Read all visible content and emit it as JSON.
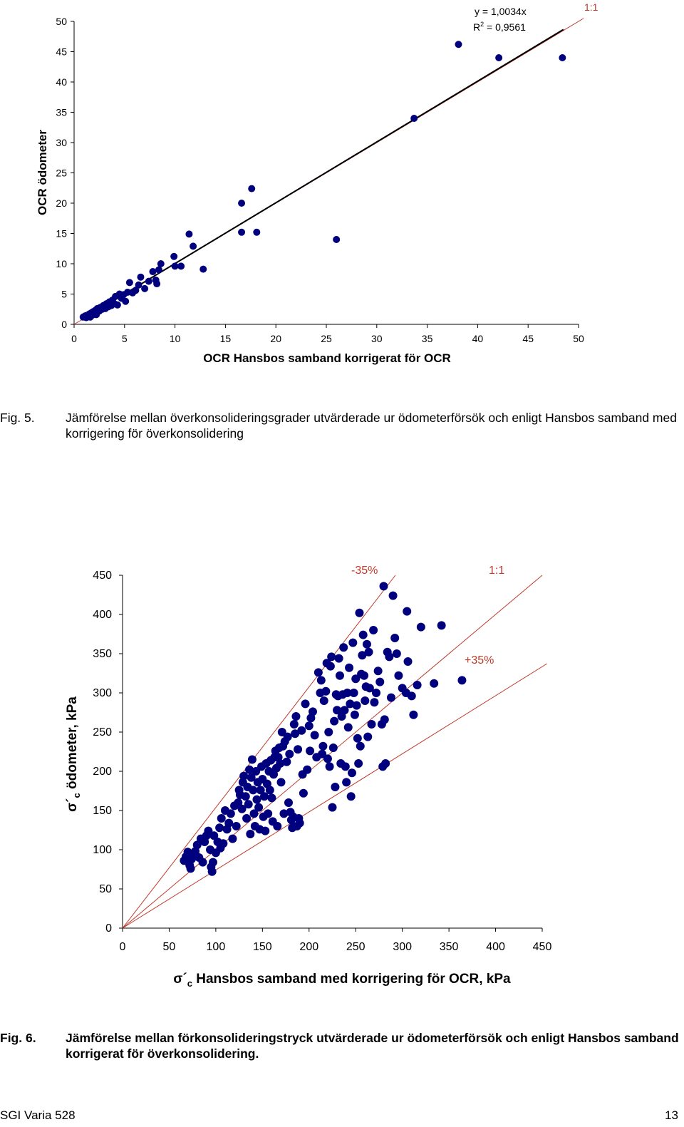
{
  "chart_data": [
    {
      "type": "scatter",
      "xlabel": "OCR Hansbos samband korrigerat för OCR",
      "ylabel": "OCR ödometer",
      "xlim": [
        0,
        50
      ],
      "ylim": [
        0,
        50
      ],
      "xticks": [
        0,
        5,
        10,
        15,
        20,
        25,
        30,
        35,
        40,
        45,
        50
      ],
      "yticks": [
        0,
        5,
        10,
        15,
        20,
        25,
        30,
        35,
        40,
        45,
        50
      ],
      "grid": false,
      "trendline": {
        "slope": 1.0034,
        "equation": "y = 1,0034x",
        "r2_prefix": "R",
        "r2_sup": "2",
        "r2_value": " = 0,9561"
      },
      "reference_lines": [
        {
          "slope": 1,
          "label": "1:1",
          "color": "#c0392b"
        }
      ],
      "point_color": "#00007f",
      "points": [
        [
          0.9,
          1.2
        ],
        [
          1.1,
          1.4
        ],
        [
          1.2,
          1.1
        ],
        [
          1.3,
          1.5
        ],
        [
          1.4,
          1.3
        ],
        [
          1.5,
          1.7
        ],
        [
          1.6,
          1.2
        ],
        [
          1.7,
          1.9
        ],
        [
          1.8,
          1.5
        ],
        [
          1.9,
          2.1
        ],
        [
          2.0,
          1.8
        ],
        [
          2.1,
          2.3
        ],
        [
          2.2,
          1.6
        ],
        [
          2.3,
          2.6
        ],
        [
          2.5,
          2.2
        ],
        [
          2.6,
          2.8
        ],
        [
          2.8,
          2.5
        ],
        [
          2.9,
          3.1
        ],
        [
          3.1,
          2.6
        ],
        [
          3.2,
          3.4
        ],
        [
          3.4,
          2.9
        ],
        [
          3.5,
          3.7
        ],
        [
          3.7,
          3.1
        ],
        [
          3.8,
          4.0
        ],
        [
          4.0,
          3.4
        ],
        [
          4.1,
          4.6
        ],
        [
          4.3,
          3.2
        ],
        [
          4.5,
          5.0
        ],
        [
          4.7,
          4.3
        ],
        [
          4.9,
          4.9
        ],
        [
          5.1,
          3.8
        ],
        [
          5.3,
          5.3
        ],
        [
          5.5,
          6.9
        ],
        [
          5.8,
          5.2
        ],
        [
          6.1,
          5.6
        ],
        [
          6.4,
          6.5
        ],
        [
          6.6,
          7.8
        ],
        [
          7.0,
          5.9
        ],
        [
          7.4,
          7.1
        ],
        [
          7.8,
          8.7
        ],
        [
          8.1,
          7.3
        ],
        [
          8.2,
          6.7
        ],
        [
          8.4,
          9.0
        ],
        [
          8.6,
          10.0
        ],
        [
          9.9,
          11.2
        ],
        [
          10.0,
          9.6
        ],
        [
          10.6,
          9.6
        ],
        [
          11.4,
          14.9
        ],
        [
          11.8,
          12.9
        ],
        [
          12.8,
          9.1
        ],
        [
          16.6,
          20.0
        ],
        [
          16.6,
          15.2
        ],
        [
          17.6,
          22.4
        ],
        [
          18.1,
          15.2
        ],
        [
          26.0,
          14.0
        ],
        [
          33.7,
          34.0
        ],
        [
          38.1,
          46.2
        ],
        [
          42.1,
          44.0
        ],
        [
          48.4,
          44.0
        ]
      ]
    },
    {
      "type": "scatter",
      "xlabel_sigma": "σ´",
      "xlabel_sub": "c",
      "xlabel": " Hansbos samband med korrigering för OCR, kPa",
      "ylabel_sigma": "σ´",
      "ylabel_sub": "c",
      "ylabel": " ödometer, kPa",
      "xlim": [
        0,
        450
      ],
      "ylim": [
        0,
        450
      ],
      "xticks": [
        0,
        50,
        100,
        150,
        200,
        250,
        300,
        350,
        400,
        450
      ],
      "yticks": [
        0,
        50,
        100,
        150,
        200,
        250,
        300,
        350,
        400,
        450
      ],
      "grid": false,
      "reference_lines": [
        {
          "slope": 1.538,
          "label": "-35%",
          "color": "#c0392b"
        },
        {
          "slope": 1.0,
          "label": "1:1",
          "color": "#c0392b"
        },
        {
          "slope": 0.741,
          "label": "+35%",
          "color": "#c0392b"
        }
      ],
      "point_color": "#00007f",
      "points": [
        [
          66,
          86
        ],
        [
          68,
          91
        ],
        [
          70,
          97
        ],
        [
          72,
          80
        ],
        [
          73,
          76
        ],
        [
          74,
          88
        ],
        [
          75,
          94
        ],
        [
          78,
          98
        ],
        [
          80,
          106
        ],
        [
          82,
          90
        ],
        [
          84,
          114
        ],
        [
          86,
          84
        ],
        [
          88,
          110
        ],
        [
          90,
          118
        ],
        [
          92,
          124
        ],
        [
          94,
          100
        ],
        [
          95,
          78
        ],
        [
          96,
          72
        ],
        [
          97,
          84
        ],
        [
          98,
          118
        ],
        [
          100,
          96
        ],
        [
          102,
          110
        ],
        [
          104,
          128
        ],
        [
          105,
          102
        ],
        [
          106,
          140
        ],
        [
          108,
          108
        ],
        [
          110,
          150
        ],
        [
          112,
          126
        ],
        [
          114,
          134
        ],
        [
          116,
          146
        ],
        [
          118,
          114
        ],
        [
          120,
          156
        ],
        [
          122,
          130
        ],
        [
          124,
          160
        ],
        [
          125,
          176
        ],
        [
          126,
          170
        ],
        [
          128,
          152
        ],
        [
          129,
          186
        ],
        [
          130,
          194
        ],
        [
          132,
          168
        ],
        [
          133,
          140
        ],
        [
          134,
          180
        ],
        [
          135,
          158
        ],
        [
          136,
          202
        ],
        [
          137,
          120
        ],
        [
          138,
          192
        ],
        [
          139,
          215
        ],
        [
          140,
          176
        ],
        [
          141,
          146
        ],
        [
          142,
          130
        ],
        [
          143,
          200
        ],
        [
          144,
          164
        ],
        [
          145,
          186
        ],
        [
          146,
          154
        ],
        [
          147,
          126
        ],
        [
          148,
          176
        ],
        [
          149,
          206
        ],
        [
          150,
          190
        ],
        [
          151,
          142
        ],
        [
          152,
          168
        ],
        [
          153,
          124
        ],
        [
          154,
          210
        ],
        [
          155,
          184
        ],
        [
          156,
          146
        ],
        [
          157,
          200
        ],
        [
          158,
          176
        ],
        [
          159,
          214
        ],
        [
          160,
          166
        ],
        [
          161,
          136
        ],
        [
          162,
          196
        ],
        [
          163,
          218
        ],
        [
          164,
          226
        ],
        [
          165,
          204
        ],
        [
          166,
          130
        ],
        [
          167,
          218
        ],
        [
          168,
          230
        ],
        [
          169,
          210
        ],
        [
          170,
          186
        ],
        [
          171,
          250
        ],
        [
          172,
          232
        ],
        [
          173,
          146
        ],
        [
          174,
          238
        ],
        [
          176,
          212
        ],
        [
          177,
          244
        ],
        [
          178,
          160
        ],
        [
          179,
          222
        ],
        [
          180,
          148
        ],
        [
          181,
          138
        ],
        [
          182,
          128
        ],
        [
          183,
          142
        ],
        [
          184,
          260
        ],
        [
          185,
          248
        ],
        [
          186,
          270
        ],
        [
          187,
          130
        ],
        [
          188,
          228
        ],
        [
          189,
          140
        ],
        [
          190,
          134
        ],
        [
          192,
          252
        ],
        [
          193,
          196
        ],
        [
          194,
          172
        ],
        [
          196,
          286
        ],
        [
          198,
          202
        ],
        [
          200,
          258
        ],
        [
          201,
          226
        ],
        [
          202,
          268
        ],
        [
          204,
          276
        ],
        [
          206,
          246
        ],
        [
          208,
          218
        ],
        [
          210,
          326
        ],
        [
          212,
          300
        ],
        [
          213,
          316
        ],
        [
          214,
          222
        ],
        [
          215,
          232
        ],
        [
          216,
          290
        ],
        [
          218,
          302
        ],
        [
          219,
          338
        ],
        [
          220,
          216
        ],
        [
          221,
          250
        ],
        [
          222,
          206
        ],
        [
          223,
          334
        ],
        [
          224,
          346
        ],
        [
          225,
          154
        ],
        [
          226,
          230
        ],
        [
          227,
          264
        ],
        [
          228,
          180
        ],
        [
          229,
          298
        ],
        [
          230,
          278
        ],
        [
          231,
          296
        ],
        [
          232,
          344
        ],
        [
          233,
          322
        ],
        [
          234,
          210
        ],
        [
          235,
          270
        ],
        [
          236,
          298
        ],
        [
          237,
          358
        ],
        [
          238,
          278
        ],
        [
          239,
          206
        ],
        [
          240,
          186
        ],
        [
          241,
          300
        ],
        [
          242,
          256
        ],
        [
          243,
          332
        ],
        [
          244,
          286
        ],
        [
          245,
          168
        ],
        [
          246,
          198
        ],
        [
          247,
          364
        ],
        [
          248,
          300
        ],
        [
          249,
          272
        ],
        [
          250,
          318
        ],
        [
          251,
          284
        ],
        [
          252,
          242
        ],
        [
          253,
          210
        ],
        [
          254,
          402
        ],
        [
          255,
          232
        ],
        [
          256,
          324
        ],
        [
          257,
          348
        ],
        [
          258,
          374
        ],
        [
          259,
          322
        ],
        [
          260,
          290
        ],
        [
          261,
          308
        ],
        [
          262,
          362
        ],
        [
          263,
          244
        ],
        [
          264,
          352
        ],
        [
          265,
          306
        ],
        [
          267,
          260
        ],
        [
          269,
          380
        ],
        [
          270,
          288
        ],
        [
          272,
          300
        ],
        [
          274,
          328
        ],
        [
          276,
          314
        ],
        [
          278,
          260
        ],
        [
          279,
          206
        ],
        [
          280,
          436
        ],
        [
          281,
          266
        ],
        [
          282,
          210
        ],
        [
          284,
          352
        ],
        [
          286,
          346
        ],
        [
          288,
          294
        ],
        [
          290,
          424
        ],
        [
          292,
          370
        ],
        [
          294,
          350
        ],
        [
          296,
          322
        ],
        [
          300,
          306
        ],
        [
          304,
          300
        ],
        [
          305,
          404
        ],
        [
          306,
          340
        ],
        [
          310,
          296
        ],
        [
          312,
          272
        ],
        [
          316,
          310
        ],
        [
          320,
          384
        ],
        [
          334,
          312
        ],
        [
          342,
          386
        ],
        [
          364,
          316
        ]
      ]
    }
  ],
  "captions": {
    "fig5_num": "Fig. 5.",
    "fig5_text": "Jämförelse mellan överkonsolideringsgrader utvärderade ur ödometerförsök och enligt Hansbos samband med korrigering för överkonsolidering",
    "fig6_num": "Fig. 6.",
    "fig6_text": "Jämförelse mellan förkonsolideringstryck utvärderade ur ödometerförsök och enligt Hansbos samband korrigerat för överkonsolidering."
  },
  "footer": {
    "left": "SGI Varia 528",
    "right": "13"
  }
}
